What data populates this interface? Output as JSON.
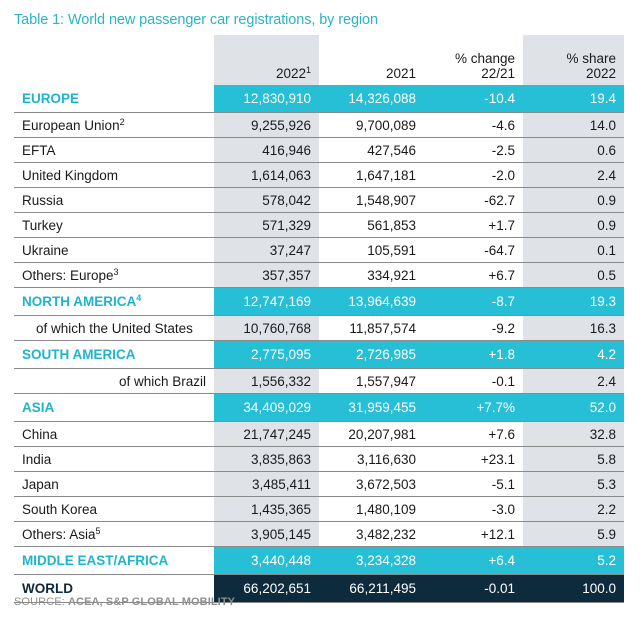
{
  "title": "Table 1: World new passenger car registrations, by region",
  "header": {
    "col_2022": "2022",
    "col_2022_sup": "1",
    "col_2021": "2021",
    "col_change": "% change",
    "col_change_sub": "22/21",
    "col_share": "% share",
    "col_share_sub": "2022"
  },
  "rows": [
    {
      "kind": "region",
      "label": "EUROPE",
      "sup": "",
      "v2022": "12,830,910",
      "v2021": "14,326,088",
      "change": "-10.4",
      "share": "19.4"
    },
    {
      "kind": "item",
      "label": "European Union",
      "sup": "2",
      "v2022": "9,255,926",
      "v2021": "9,700,089",
      "change": "-4.6",
      "share": "14.0"
    },
    {
      "kind": "item",
      "label": "EFTA",
      "sup": "",
      "v2022": "416,946",
      "v2021": "427,546",
      "change": "-2.5",
      "share": "0.6"
    },
    {
      "kind": "item",
      "label": "United Kingdom",
      "sup": "",
      "v2022": "1,614,063",
      "v2021": "1,647,181",
      "change": "-2.0",
      "share": "2.4"
    },
    {
      "kind": "item",
      "label": "Russia",
      "sup": "",
      "v2022": "578,042",
      "v2021": "1,548,907",
      "change": "-62.7",
      "share": "0.9"
    },
    {
      "kind": "item",
      "label": "Turkey",
      "sup": "",
      "v2022": "571,329",
      "v2021": "561,853",
      "change": "+1.7",
      "share": "0.9"
    },
    {
      "kind": "item",
      "label": "Ukraine",
      "sup": "",
      "v2022": "37,247",
      "v2021": "105,591",
      "change": "-64.7",
      "share": "0.1"
    },
    {
      "kind": "item",
      "label": "Others: Europe",
      "sup": "3",
      "v2022": "357,357",
      "v2021": "334,921",
      "change": "+6.7",
      "share": "0.5"
    },
    {
      "kind": "region",
      "label": "NORTH AMERICA",
      "sup": "4",
      "v2022": "12,747,169",
      "v2021": "13,964,639",
      "change": "-8.7",
      "share": "19.3"
    },
    {
      "kind": "sub-indent",
      "label": "of which the United States",
      "sup": "",
      "v2022": "10,760,768",
      "v2021": "11,857,574",
      "change": "-9.2",
      "share": "16.3"
    },
    {
      "kind": "region",
      "label": "SOUTH AMERICA",
      "sup": "",
      "v2022": "2,775,095",
      "v2021": "2,726,985",
      "change": "+1.8",
      "share": "4.2"
    },
    {
      "kind": "sub-right",
      "label": "of which Brazil",
      "sup": "",
      "v2022": "1,556,332",
      "v2021": "1,557,947",
      "change": "-0.1",
      "share": "2.4"
    },
    {
      "kind": "region",
      "label": "ASIA",
      "sup": "",
      "v2022": "34,409,029",
      "v2021": "31,959,455",
      "change": "+7.7%",
      "share": "52.0"
    },
    {
      "kind": "item",
      "label": "China",
      "sup": "",
      "v2022": "21,747,245",
      "v2021": "20,207,981",
      "change": "+7.6",
      "share": "32.8"
    },
    {
      "kind": "item",
      "label": "India",
      "sup": "",
      "v2022": "3,835,863",
      "v2021": "3,116,630",
      "change": "+23.1",
      "share": "5.8"
    },
    {
      "kind": "item",
      "label": "Japan",
      "sup": "",
      "v2022": "3,485,411",
      "v2021": "3,672,503",
      "change": "-5.1",
      "share": "5.3"
    },
    {
      "kind": "item",
      "label": "South Korea",
      "sup": "",
      "v2022": "1,435,365",
      "v2021": "1,480,109",
      "change": "-3.0",
      "share": "2.2"
    },
    {
      "kind": "item",
      "label": "Others: Asia",
      "sup": "5",
      "v2022": "3,905,145",
      "v2021": "3,482,232",
      "change": "+12.1",
      "share": "5.9"
    },
    {
      "kind": "region",
      "label": "MIDDLE EAST/AFRICA",
      "sup": "",
      "v2022": "3,440,448",
      "v2021": "3,234,328",
      "change": "+6.4",
      "share": "5.2"
    },
    {
      "kind": "world",
      "label": "WORLD",
      "sup": "",
      "v2022": "66,202,651",
      "v2021": "66,211,495",
      "change": "-0.01",
      "share": "100.0"
    }
  ],
  "source_prefix": "SOURCE: ",
  "source_text": "ACEA, S&P GLOBAL MOBILITY",
  "colors": {
    "title": "#2ab3c6",
    "region_band": "#27bfd6",
    "region_label": "#1fb4cc",
    "world_band": "#0e2b3d",
    "shade": "#dfe3e8"
  }
}
